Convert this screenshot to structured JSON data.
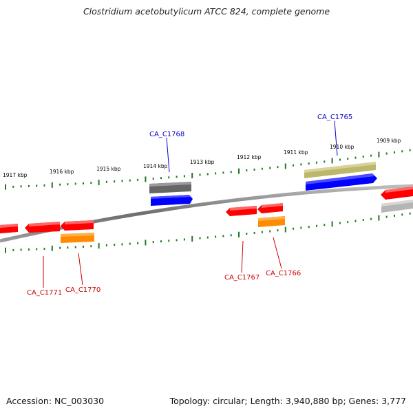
{
  "title": "Clostridium acetobutylicum ATCC 824, complete genome",
  "footer": {
    "accession": "Accession: NC_003030",
    "summary": "Topology: circular; Length: 3,940,880 bp; Genes: 3,777"
  },
  "ticks_upper": [
    "1917 kbp",
    "1916 kbp",
    "1915 kbp",
    "1914 kbp",
    "1913 kbp",
    "1912 kbp",
    "1911 kbp",
    "1910 kbp",
    "1909 kbp"
  ],
  "labels_upper": [
    "CA_C1768",
    "CA_C1765"
  ],
  "labels_lower": [
    "CA_C1771",
    "CA_C1770",
    "CA_C1767",
    "CA_C1766"
  ],
  "colors": {
    "backbone": "#7a7a7a",
    "ticks": "#1e7a1e",
    "forward_label": "#0000cc",
    "reverse_label": "#cc0000",
    "gene_red": "#ff0000",
    "gene_blue": "#0000ff",
    "gene_orange": "#ff8c00",
    "gene_gray": "#666666",
    "gene_olive": "#bdb76b",
    "gene_lightgray": "#b5b5b5"
  }
}
